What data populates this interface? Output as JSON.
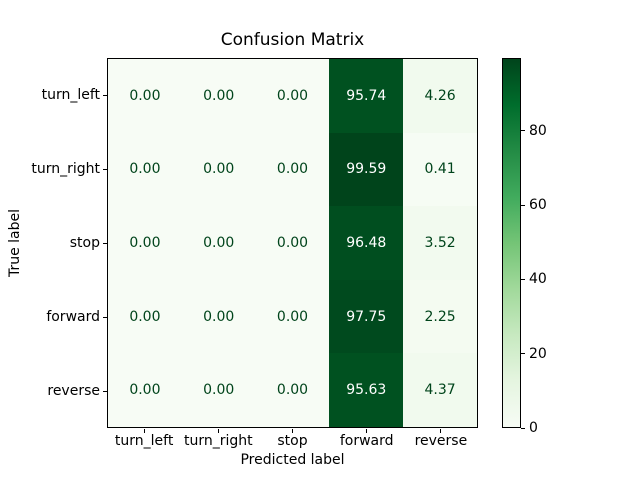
{
  "figure": {
    "background_color": "#ffffff",
    "axes_border_color": "#000000"
  },
  "chart_data": {
    "type": "heatmap",
    "title": "Confusion Matrix",
    "xlabel": "Predicted label",
    "ylabel": "True label",
    "row_labels": [
      "turn_left",
      "turn_right",
      "stop",
      "forward",
      "reverse"
    ],
    "col_labels": [
      "turn_left",
      "turn_right",
      "stop",
      "forward",
      "reverse"
    ],
    "matrix": [
      [
        0.0,
        0.0,
        0.0,
        95.74,
        4.26
      ],
      [
        0.0,
        0.0,
        0.0,
        99.59,
        0.41
      ],
      [
        0.0,
        0.0,
        0.0,
        96.48,
        3.52
      ],
      [
        0.0,
        0.0,
        0.0,
        97.75,
        2.25
      ],
      [
        0.0,
        0.0,
        0.0,
        95.63,
        4.37
      ]
    ],
    "value_format_decimals": 2,
    "vmin": 0,
    "vmax": 99.59,
    "colormap": {
      "name": "Greens",
      "stops": [
        "#f7fcf5",
        "#e5f5e0",
        "#c7e9c0",
        "#a1d99b",
        "#74c476",
        "#41ab5d",
        "#238b45",
        "#006d2c",
        "#00441b"
      ]
    },
    "cell_text_color_on_dark": "#ffffff",
    "cell_text_color_on_light": "#00441b",
    "colorbar": {
      "position": "right",
      "ticks": [
        {
          "value": 0,
          "label": "0"
        },
        {
          "value": 20,
          "label": "20"
        },
        {
          "value": 40,
          "label": "40"
        },
        {
          "value": 60,
          "label": "60"
        },
        {
          "value": 80,
          "label": "80"
        }
      ]
    },
    "grid": false,
    "legend": false
  }
}
